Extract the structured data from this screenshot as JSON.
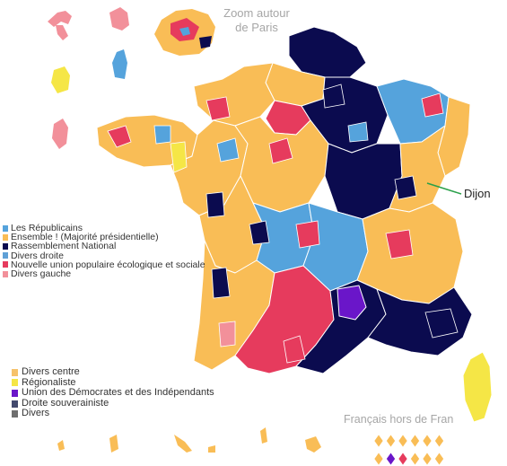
{
  "labels": {
    "zoom_paris": "Zoom autour de Paris",
    "abroad": "Français hors de Fran",
    "dijon": "Dijon"
  },
  "colors": {
    "lr": "#55a3dc",
    "ens": "#f9bd56",
    "rn": "#0b0b4f",
    "dvd": "#5fa0d6",
    "nupes": "#e63b5d",
    "dvg": "#f2909a",
    "dvc": "#f6c26b",
    "reg": "#f5e646",
    "udi": "#6a16c9",
    "dsv": "#434a6e",
    "div": "#6f6f6f",
    "border": "#ffffff",
    "dept": "#7a7a7a"
  },
  "legend_top": [
    {
      "label": "Les Républicains",
      "color": "#55a3dc"
    },
    {
      "label": "Ensemble ! (Majorité présidentielle)",
      "color": "#f9bd56"
    },
    {
      "label": "Rassemblement National",
      "color": "#0b0b4f"
    },
    {
      "label": "Divers droite",
      "color": "#5fa0d6"
    },
    {
      "label": "Nouvelle union populaire écologique et sociale",
      "color": "#e63b5d"
    },
    {
      "label": "Divers gauche",
      "color": "#f2909a"
    }
  ],
  "legend_bottom": [
    {
      "label": "Divers centre",
      "color": "#f6c26b"
    },
    {
      "label": "Régionaliste",
      "color": "#f5e646"
    },
    {
      "label": "Union des Démocrates et des Indépendants",
      "color": "#6a16c9"
    },
    {
      "label": "Droite souverainiste",
      "color": "#434a6e"
    },
    {
      "label": "Divers",
      "color": "#6f6f6f"
    }
  ],
  "abroad_results": {
    "row1": [
      "ens",
      "ens",
      "ens",
      "ens",
      "ens",
      "ens"
    ],
    "row2": [
      "ens",
      "udi",
      "nupes",
      "ens",
      "ens",
      "ens"
    ]
  },
  "regions": [
    {
      "id": "nord",
      "party": "rn"
    },
    {
      "id": "picardie",
      "party": "ens"
    },
    {
      "id": "champagne",
      "party": "rn"
    },
    {
      "id": "lorraine",
      "party": "lr"
    },
    {
      "id": "alsace",
      "party": "ens"
    },
    {
      "id": "normandie",
      "party": "ens"
    },
    {
      "id": "idf",
      "party": "nupes"
    },
    {
      "id": "bretagne",
      "party": "ens"
    },
    {
      "id": "pays-de-loire",
      "party": "ens"
    },
    {
      "id": "centre",
      "party": "ens"
    },
    {
      "id": "bourgogne",
      "party": "rn"
    },
    {
      "id": "franche-comte",
      "party": "ens"
    },
    {
      "id": "poitou",
      "party": "ens"
    },
    {
      "id": "limousin",
      "party": "lr"
    },
    {
      "id": "auvergne",
      "party": "lr"
    },
    {
      "id": "rhone-alpes",
      "party": "ens"
    },
    {
      "id": "aquitaine",
      "party": "ens"
    },
    {
      "id": "midi-pyrenees",
      "party": "nupes"
    },
    {
      "id": "languedoc",
      "party": "rn"
    },
    {
      "id": "lozere",
      "party": "udi"
    },
    {
      "id": "paca",
      "party": "rn"
    },
    {
      "id": "corse",
      "party": "reg"
    }
  ]
}
